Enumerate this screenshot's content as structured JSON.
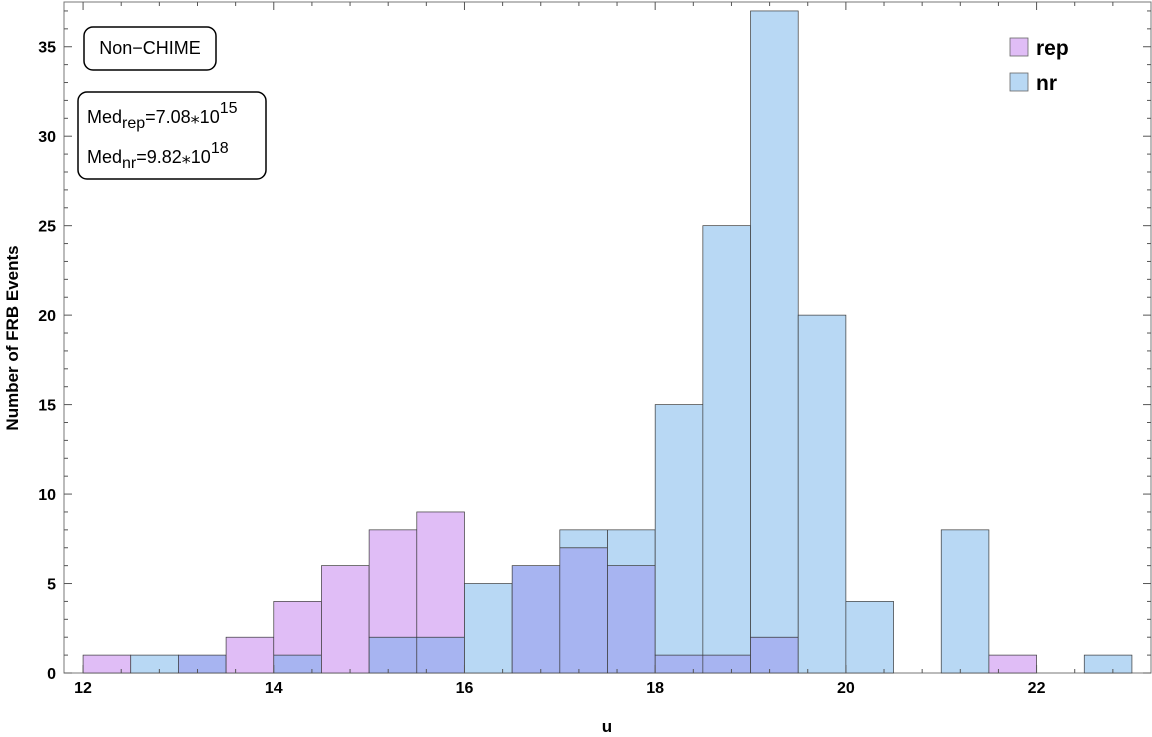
{
  "chart_data": {
    "type": "bar",
    "title": "",
    "xlabel": "u",
    "ylabel": "Number of FRB Events",
    "xlim": [
      11.8,
      23.2
    ],
    "ylim": [
      0,
      37.5
    ],
    "xticks": [
      "12",
      "14",
      "16",
      "18",
      "20",
      "22"
    ],
    "yticks": [
      "0",
      "5",
      "10",
      "15",
      "20",
      "25",
      "30",
      "35"
    ],
    "bin_width": 0.5,
    "legend_position": "top-right",
    "colors": {
      "rep": "#e0bdf6",
      "nr": "#b8d8f4",
      "overlap": "#a7b4f1"
    },
    "series": [
      {
        "name": "rep",
        "bins": [
          {
            "x": 12.0,
            "count": 1
          },
          {
            "x": 13.0,
            "count": 1
          },
          {
            "x": 13.5,
            "count": 2
          },
          {
            "x": 14.0,
            "count": 4
          },
          {
            "x": 14.5,
            "count": 6
          },
          {
            "x": 15.0,
            "count": 8
          },
          {
            "x": 15.5,
            "count": 9
          },
          {
            "x": 16.5,
            "count": 6
          },
          {
            "x": 17.0,
            "count": 7
          },
          {
            "x": 17.5,
            "count": 6
          },
          {
            "x": 18.0,
            "count": 1
          },
          {
            "x": 18.5,
            "count": 1
          },
          {
            "x": 19.0,
            "count": 2
          },
          {
            "x": 21.5,
            "count": 1
          }
        ]
      },
      {
        "name": "nr",
        "bins": [
          {
            "x": 12.5,
            "count": 1
          },
          {
            "x": 13.0,
            "count": 1
          },
          {
            "x": 14.0,
            "count": 1
          },
          {
            "x": 15.0,
            "count": 2
          },
          {
            "x": 15.5,
            "count": 2
          },
          {
            "x": 16.0,
            "count": 5
          },
          {
            "x": 16.5,
            "count": 6
          },
          {
            "x": 17.0,
            "count": 8
          },
          {
            "x": 17.5,
            "count": 8
          },
          {
            "x": 18.0,
            "count": 15
          },
          {
            "x": 18.5,
            "count": 25
          },
          {
            "x": 19.0,
            "count": 37
          },
          {
            "x": 19.5,
            "count": 20
          },
          {
            "x": 20.0,
            "count": 4
          },
          {
            "x": 21.0,
            "count": 8
          },
          {
            "x": 22.5,
            "count": 1
          }
        ]
      }
    ],
    "annotations": {
      "label": "Non−CHIME",
      "median_rep": {
        "base": "Med",
        "sub": "rep",
        "value": "=7.08⁎10",
        "exp": "15"
      },
      "median_nr": {
        "base": "Med",
        "sub": "nr",
        "value": "=9.82⁎10",
        "exp": "18"
      }
    }
  }
}
